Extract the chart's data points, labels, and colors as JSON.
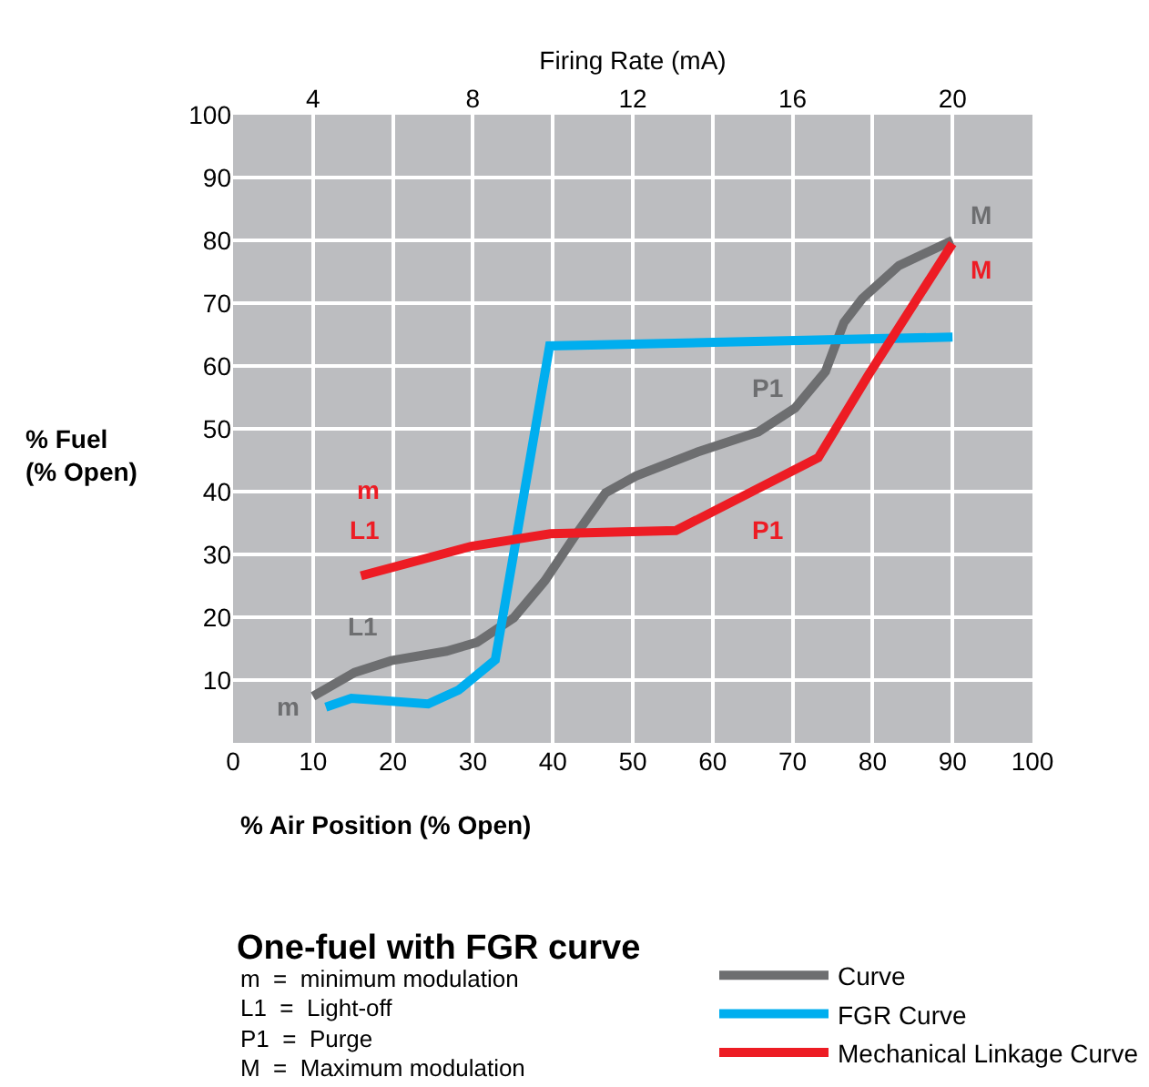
{
  "chart_data": {
    "type": "line",
    "title": "One-fuel with FGR curve",
    "xlabel": "% Air Position (% Open)",
    "ylabel": "% Fuel\n(% Open)",
    "x2label": "Firing Rate (mA)",
    "xlim": [
      0,
      100
    ],
    "xticks": [
      0,
      10,
      20,
      30,
      40,
      50,
      60,
      70,
      80,
      90,
      100
    ],
    "ylim": [
      0,
      100
    ],
    "yticks": [
      10,
      20,
      30,
      40,
      50,
      60,
      70,
      80,
      90,
      100
    ],
    "x2lim": [
      2,
      22
    ],
    "x2ticks": [
      4,
      8,
      12,
      16,
      20
    ],
    "grid": true,
    "legend": "bottom",
    "marker": "none",
    "line_style": "solid",
    "series": [
      {
        "name": "Curve",
        "color": "#6d6e70",
        "x": [
          10,
          15.2,
          19.8,
          26.7,
          30.5,
          35.1,
          39,
          42.8,
          46.6,
          50.4,
          58.1,
          65.7,
          70.3,
          74.1,
          76.4,
          78.7,
          83.3,
          90
        ],
        "values": [
          7.4,
          11.2,
          13.1,
          14.6,
          16,
          19.9,
          25.8,
          33,
          39.8,
          42.5,
          46.3,
          49.5,
          53.3,
          59.1,
          66.9,
          70.7,
          76,
          80
        ]
      },
      {
        "name": "FGR Curve",
        "color": "#00aeef",
        "x": [
          11.6,
          14.8,
          24.4,
          28.2,
          32.8,
          39.6,
          90
        ],
        "values": [
          5.7,
          7.1,
          6.2,
          8.4,
          13.2,
          63.2,
          64.6
        ]
      },
      {
        "name": "Mechanical Linkage Curve",
        "color": "#ed1c24",
        "x": [
          16,
          29.8,
          39.7,
          55.4,
          73.2,
          79.5,
          90
        ],
        "values": [
          26.6,
          31.3,
          33.3,
          33.8,
          45.4,
          58.6,
          79.5
        ]
      }
    ],
    "annotations": [
      {
        "text": "m",
        "x": 10,
        "y": 7.4
      },
      {
        "text": "L1",
        "x": 15.2,
        "y": 11.2
      },
      {
        "text": "P1",
        "x": 65.7,
        "y": 49.5
      },
      {
        "text": "M",
        "x": 90,
        "y": 80
      },
      {
        "text": "m",
        "x": 16,
        "y": 26.6
      },
      {
        "text": "L1",
        "x": 16,
        "y": 26.6
      },
      {
        "text": "P1",
        "x": 66.8,
        "y": 41.2
      },
      {
        "text": "M",
        "x": 90,
        "y": 79.5
      },
      "m  =  minimum modulation",
      "L1  =  Light-off",
      "P1  =  Purge",
      "M  =  Maximum modulation"
    ]
  }
}
